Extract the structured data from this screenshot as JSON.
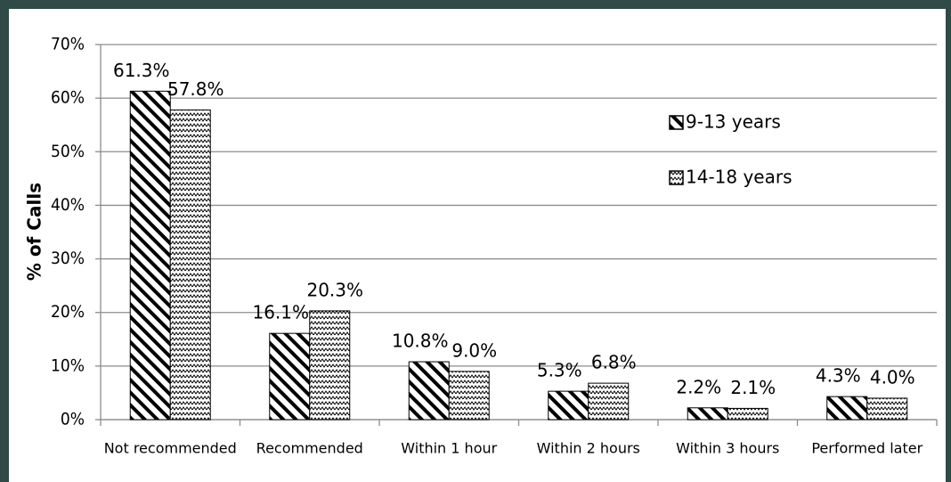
{
  "chart_data": {
    "type": "bar",
    "y_label": "% of Calls",
    "categories": [
      "Not recommended",
      "Recommended",
      "Within 1 hour",
      "Within 2 hours",
      "Within 3 hours",
      "Performed later"
    ],
    "series": [
      {
        "name": "9-13 years",
        "color": "#000000",
        "values": [
          61.3,
          16.1,
          10.8,
          5.3,
          2.2,
          4.3
        ],
        "value_labels": [
          "61.3%",
          "16.1%",
          "10.8%",
          "5.3%",
          "2.2%",
          "4.3%"
        ]
      },
      {
        "name": "14-18 years",
        "color": "#000000",
        "values": [
          57.8,
          20.3,
          9.0,
          6.8,
          2.1,
          4.0
        ],
        "value_labels": [
          "57.8%",
          "20.3%",
          "9.0%",
          "6.8%",
          "2.1%",
          "4.0%"
        ]
      }
    ],
    "ylim": [
      0,
      70
    ],
    "yticks": [
      {
        "value": 0,
        "label": "0%"
      },
      {
        "value": 10,
        "label": "10%"
      },
      {
        "value": 20,
        "label": "20%"
      },
      {
        "value": 30,
        "label": "30%"
      },
      {
        "value": 40,
        "label": "40%"
      },
      {
        "value": 50,
        "label": "50%"
      },
      {
        "value": 60,
        "label": "60%"
      },
      {
        "value": 70,
        "label": "70%"
      }
    ],
    "grid": true
  }
}
